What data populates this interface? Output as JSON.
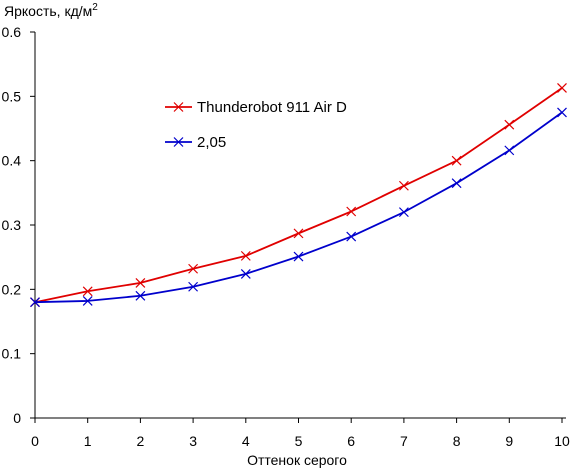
{
  "chart_data": {
    "type": "line",
    "title": "",
    "ylabel_main": "Яркость, кд/м",
    "ylabel_sup": "2",
    "xlabel": "Оттенок серого",
    "x": [
      0,
      1,
      2,
      3,
      4,
      5,
      6,
      7,
      8,
      9,
      10
    ],
    "xlim": [
      0,
      10
    ],
    "ylim": [
      0,
      0.6
    ],
    "x_ticks": [
      "0",
      "1",
      "2",
      "3",
      "4",
      "5",
      "6",
      "7",
      "8",
      "9",
      "10"
    ],
    "y_ticks": [
      "0",
      "0.1",
      "0.2",
      "0.3",
      "0.4",
      "0.5",
      "0.6"
    ],
    "y_tick_values": [
      0,
      0.1,
      0.2,
      0.3,
      0.4,
      0.5,
      0.6
    ],
    "grid": false,
    "legend_position": "upper-left-center",
    "series": [
      {
        "name": "Thunderobot 911 Air D",
        "color": "#e00000",
        "marker": "x",
        "values": [
          0.18,
          0.197,
          0.21,
          0.232,
          0.252,
          0.287,
          0.321,
          0.361,
          0.4,
          0.456,
          0.513
        ]
      },
      {
        "name": "2,05",
        "color": "#0000cc",
        "marker": "x",
        "values": [
          0.18,
          0.182,
          0.19,
          0.204,
          0.224,
          0.251,
          0.282,
          0.32,
          0.365,
          0.416,
          0.475
        ]
      }
    ]
  }
}
